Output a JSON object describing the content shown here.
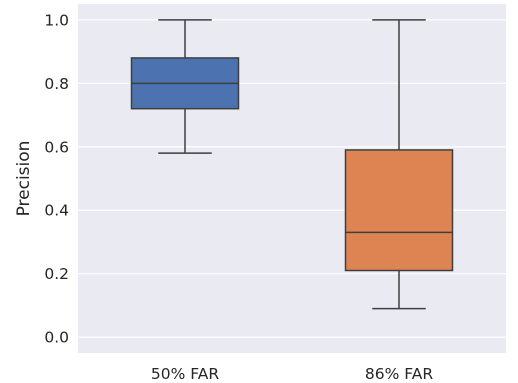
{
  "chart_data": {
    "type": "box",
    "ylabel": "Precision",
    "xlabel": "",
    "ylim": [
      -0.05,
      1.05
    ],
    "yticks": [
      0.0,
      0.2,
      0.4,
      0.6,
      0.8,
      1.0
    ],
    "ytick_labels": [
      "0.0",
      "0.2",
      "0.4",
      "0.6",
      "0.8",
      "1.0"
    ],
    "grid": true,
    "categories": [
      "50% FAR",
      "86% FAR"
    ],
    "boxes": [
      {
        "label": "50% FAR",
        "whisker_low": 0.58,
        "q1": 0.72,
        "median": 0.8,
        "q3": 0.88,
        "whisker_high": 1.0,
        "color": "#4c72b0"
      },
      {
        "label": "86% FAR",
        "whisker_low": 0.09,
        "q1": 0.21,
        "median": 0.33,
        "q3": 0.59,
        "whisker_high": 1.0,
        "color": "#dd8452"
      }
    ],
    "plot_background": "#eaeaf2",
    "line_color": "#3f3f3f"
  }
}
